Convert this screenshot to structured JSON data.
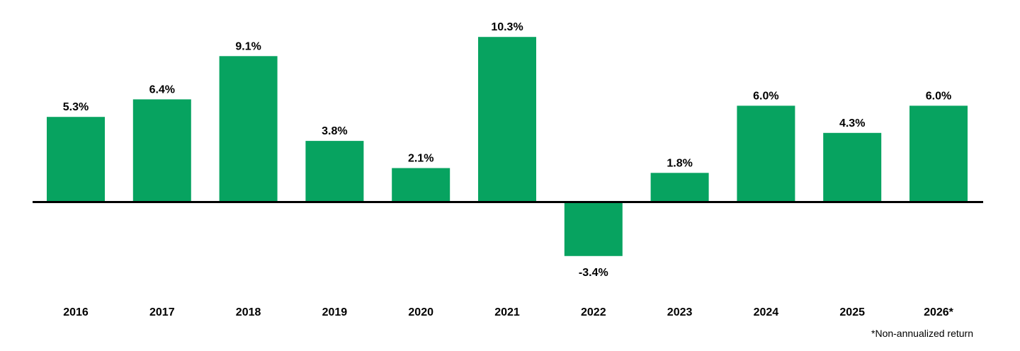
{
  "chart_data": {
    "type": "bar",
    "categories": [
      "2016",
      "2017",
      "2018",
      "2019",
      "2020",
      "2021",
      "2022",
      "2023",
      "2024",
      "2025",
      "2026*"
    ],
    "values": [
      5.3,
      6.4,
      9.1,
      3.8,
      2.1,
      10.3,
      -3.4,
      1.8,
      6.0,
      4.3,
      6.0
    ],
    "value_labels": [
      "5.3%",
      "6.4%",
      "9.1%",
      "3.8%",
      "2.1%",
      "10.3%",
      "-3.4%",
      "1.8%",
      "6.0%",
      "4.3%",
      "6.0%"
    ],
    "title": "",
    "xlabel": "",
    "ylabel": "",
    "grid": false,
    "legend": "none",
    "bar_color": "#07A360",
    "axis_color": "#000000"
  },
  "footnote": "*Non-annualized return"
}
